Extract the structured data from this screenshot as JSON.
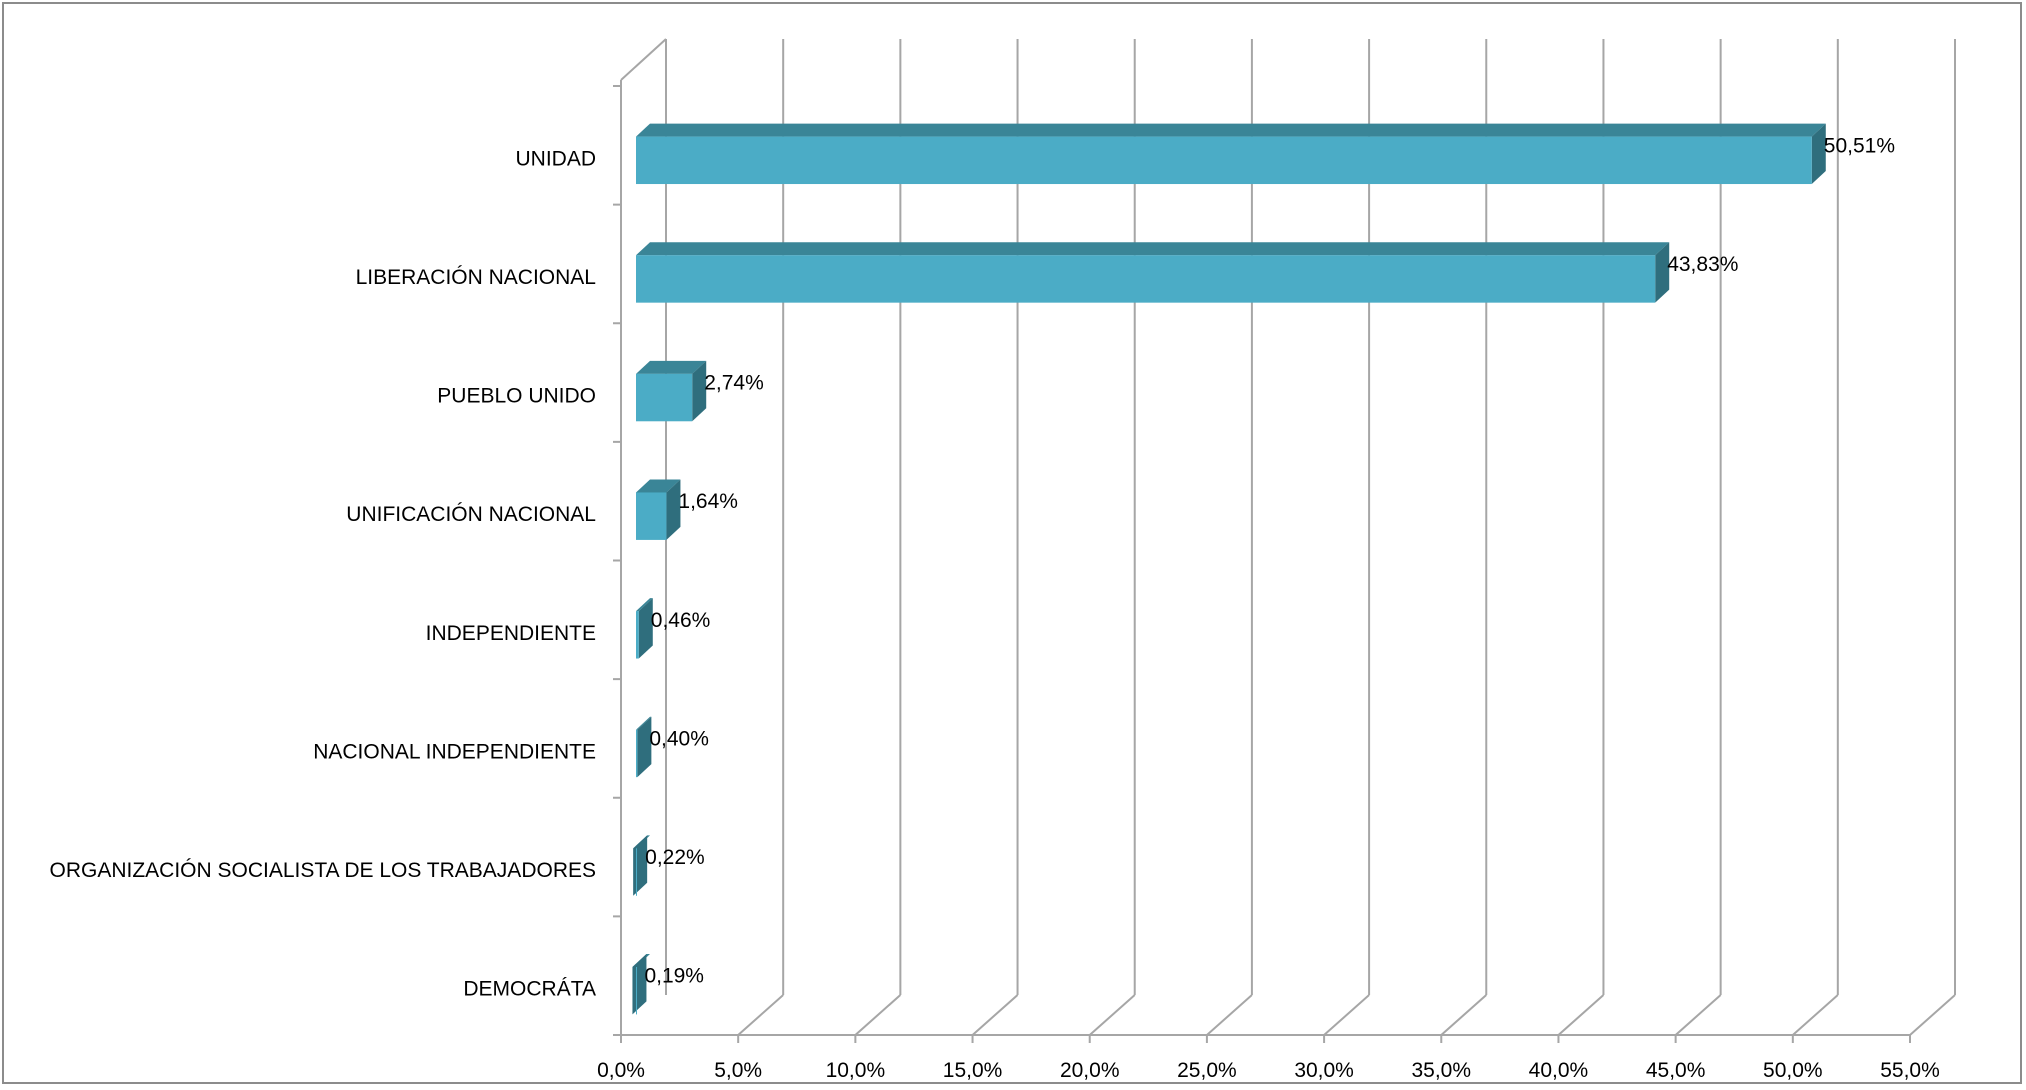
{
  "chart_data": {
    "type": "bar",
    "orientation": "horizontal",
    "style": "3d",
    "categories": [
      "UNIDAD",
      "LIBERACIÓN NACIONAL",
      "PUEBLO UNIDO",
      "UNIFICACIÓN NACIONAL",
      "INDEPENDIENTE",
      "NACIONAL INDEPENDIENTE",
      "ORGANIZACIÓN SOCIALISTA DE LOS TRABAJADORES",
      "DEMOCRÁTA"
    ],
    "values": [
      50.51,
      43.83,
      2.74,
      1.64,
      0.46,
      0.4,
      0.22,
      0.19
    ],
    "data_labels": [
      "50,51%",
      "43,83%",
      "2,74%",
      "1,64%",
      "0,46%",
      "0,40%",
      "0,22%",
      "0,19%"
    ],
    "x_ticks": [
      "0,0%",
      "5,0%",
      "10,0%",
      "15,0%",
      "20,0%",
      "25,0%",
      "30,0%",
      "35,0%",
      "40,0%",
      "45,0%",
      "50,0%",
      "55,0%"
    ],
    "xlim": [
      0,
      55
    ],
    "title": "",
    "xlabel": "",
    "ylabel": "",
    "grid": true,
    "legend": "none",
    "colors": {
      "bar_front": "#4bacc6",
      "bar_top": "#3a8597",
      "bar_side": "#2f6e7d",
      "gridline": "#a6a6a6",
      "frame": "#8c8c8c"
    }
  }
}
